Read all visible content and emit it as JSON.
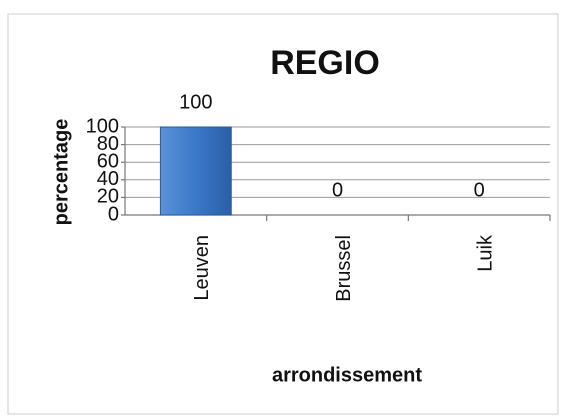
{
  "chart_data": {
    "type": "bar",
    "title": "REGIO",
    "categories": [
      "Leuven",
      "Brussel",
      "Luik"
    ],
    "values": [
      100,
      0,
      0
    ],
    "color": "#3a78c8",
    "x_label": "arrondissement",
    "y_label": "percentage",
    "ylim": [
      0,
      100
    ],
    "yticks": [
      0,
      20,
      40,
      60,
      80,
      100
    ],
    "grid": true,
    "data_labels": true
  }
}
